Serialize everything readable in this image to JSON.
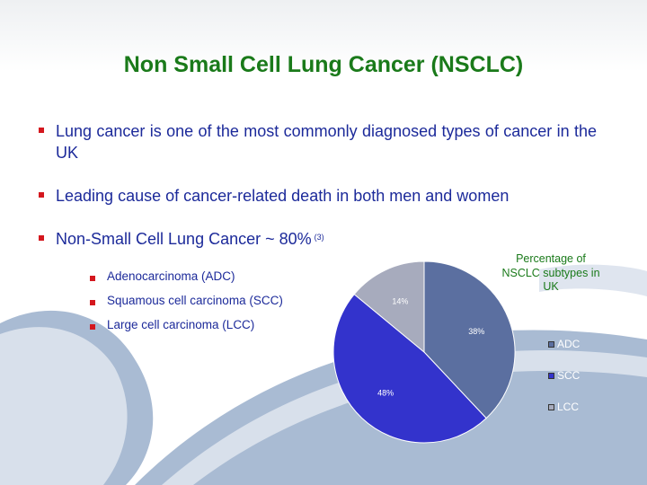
{
  "title": "Non Small Cell Lung Cancer (NSCLC)",
  "bullets": [
    {
      "text": "Lung cancer is one of the most commonly diagnosed types of cancer in the UK"
    },
    {
      "text": "Leading cause of cancer-related death in both men and women"
    },
    {
      "text": "Non-Small Cell Lung Cancer ~ 80%",
      "ref": "(3)"
    }
  ],
  "sub_bullets": [
    {
      "text": "Adenocarcinoma  (ADC)"
    },
    {
      "text": "Squamous cell carcinoma (SCC)"
    },
    {
      "text": "Large cell carcinoma (LCC)"
    }
  ],
  "colors": {
    "title": "#1a7a1a",
    "body_text": "#1c2a9a",
    "bullet_marker": "#d4171e",
    "background_swoosh": "#a9bbd3"
  },
  "chart_data": {
    "type": "pie",
    "title": "Percentage of NSCLC subtypes in UK",
    "categories": [
      "ADC",
      "SCC",
      "LCC"
    ],
    "values": [
      38,
      48,
      14
    ],
    "labels": [
      "38%",
      "48%",
      "14%"
    ],
    "colors": [
      "#5b6fa0",
      "#3333cc",
      "#a7abbd"
    ],
    "start_angle": "12 o'clock",
    "direction": "clockwise",
    "legend": "right"
  }
}
